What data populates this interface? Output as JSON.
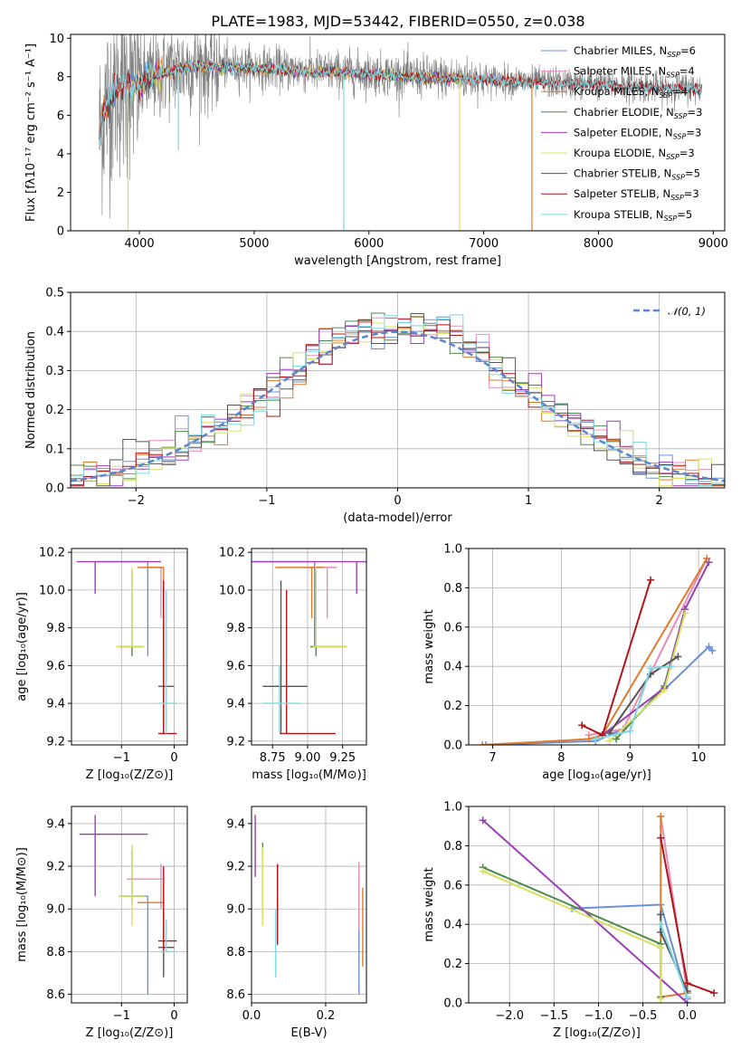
{
  "figure_title": "PLATE=1983, MJD=53442, FIBERID=0550, z=0.038",
  "colors": [
    "#6b8fd6",
    "#e58cb8",
    "#e07b2c",
    "#4c8a4c",
    "#9a3fb5",
    "#d8e060",
    "#555555",
    "#b0151b",
    "#7ed8e4"
  ],
  "chart_data": [
    {
      "id": "spectrum",
      "type": "line",
      "xlabel": "wavelength [Angstrom, rest frame]",
      "ylabel": "Flux [fλ10⁻¹⁷ erg cm⁻² s⁻¹ A⁻¹]",
      "xlim": [
        3400,
        9100
      ],
      "ylim": [
        0,
        10.2
      ],
      "xticks": [
        "4000",
        "5000",
        "6000",
        "7000",
        "8000",
        "9000"
      ],
      "yticks": [
        "0",
        "2",
        "4",
        "6",
        "8",
        "10"
      ],
      "legend_loc": "right",
      "legend": [
        "Chabrier MILES, N_SSP=6",
        "Salpeter MILES, N_SSP=4",
        "Kroupa MILES, N_SSP=4",
        "Chabrier ELODIE, N_SSP=3",
        "Salpeter ELODIE, N_SSP=3",
        "Kroupa ELODIE, N_SSP=3",
        "Chabrier STELIB, N_SSP=5",
        "Salpeter STELIB, N_SSP=3",
        "Kroupa STELIB, N_SSP=5"
      ],
      "data_range": [
        3650,
        8900
      ],
      "continuum": [
        [
          3650,
          5.0
        ],
        [
          3700,
          6.5
        ],
        [
          3800,
          7.5
        ],
        [
          3900,
          7.6
        ],
        [
          4000,
          7.6
        ],
        [
          4100,
          8.0
        ],
        [
          4300,
          8.4
        ],
        [
          4500,
          8.6
        ],
        [
          5000,
          8.5
        ],
        [
          5500,
          8.3
        ],
        [
          6000,
          8.2
        ],
        [
          6500,
          8.0
        ],
        [
          7000,
          7.9
        ],
        [
          7500,
          7.7
        ],
        [
          8000,
          7.6
        ],
        [
          8500,
          7.45
        ],
        [
          8900,
          7.4
        ]
      ],
      "model_ranges": [
        [
          3650,
          7410
        ],
        [
          3650,
          7410
        ],
        [
          3650,
          7410
        ],
        [
          4000,
          6800
        ],
        [
          4000,
          6800
        ],
        [
          3900,
          6800
        ],
        [
          3650,
          8900
        ],
        [
          3650,
          8900
        ],
        [
          3650,
          8900
        ]
      ],
      "dips": [
        {
          "x": 3900,
          "y": 0,
          "color_index": 5
        },
        {
          "x": 4340,
          "y": 4.2,
          "color_index": 8
        },
        {
          "x": 5780,
          "y": 0,
          "color_index": 8
        },
        {
          "x": 6790,
          "y": 0,
          "color_index": 5
        },
        {
          "x": 7420,
          "y": 0,
          "color_index": 2
        }
      ]
    },
    {
      "id": "residuals",
      "type": "line",
      "xlabel": "(data-model)/error",
      "ylabel": "Normed distribution",
      "xlim": [
        -2.5,
        2.5
      ],
      "ylim": [
        0,
        0.5
      ],
      "xticks": [
        "−2",
        "−1",
        "0",
        "1",
        "2"
      ],
      "yticks": [
        "0.0",
        "0.1",
        "0.2",
        "0.3",
        "0.4",
        "0.5"
      ],
      "grid": true,
      "legend": [
        "𝒩(0, 1)"
      ],
      "legend_loc": "top-right",
      "bin_width": 0.1
    },
    {
      "id": "age-vs-Z",
      "type": "scatter",
      "xlabel": "Z [log₁₀(Z/Z⊙)]",
      "ylabel": "age  [log₁₀(age/yr)]",
      "xlim": [
        -1.95,
        0.25
      ],
      "ylim": [
        9.18,
        10.22
      ],
      "xticks": [
        [
          "−1",
          -1
        ],
        [
          "0",
          0
        ]
      ],
      "yticks": [
        [
          "9.2",
          9.2
        ],
        [
          "9.4",
          9.4
        ],
        [
          "9.6",
          9.6
        ],
        [
          "9.8",
          9.8
        ],
        [
          "10.0",
          10.0
        ],
        [
          "10.2",
          10.2
        ]
      ],
      "grid": true,
      "points": [
        {
          "x": -0.5,
          "y": 10.15,
          "xe": [
            -1.5,
            -0.5
          ],
          "ye": [
            9.65,
            10.15
          ],
          "c": 0
        },
        {
          "x": -0.25,
          "y": 10.12,
          "xe": [
            -0.55,
            -0.2
          ],
          "ye": [
            9.85,
            10.12
          ],
          "c": 1
        },
        {
          "x": -0.2,
          "y": 10.12,
          "xe": [
            -0.7,
            -0.2
          ],
          "ye": [
            9.85,
            10.12
          ],
          "c": 2
        },
        {
          "x": -0.8,
          "y": 9.7,
          "xe": [
            -1.05,
            -0.6
          ],
          "ye": [
            9.65,
            10.1
          ],
          "c": 3
        },
        {
          "x": -1.5,
          "y": 10.15,
          "xe": [
            -1.85,
            -0.25
          ],
          "ye": [
            9.98,
            10.15
          ],
          "c": 4
        },
        {
          "x": -0.8,
          "y": 9.7,
          "xe": [
            -1.1,
            -0.55
          ],
          "ye": [
            9.7,
            10.12
          ],
          "c": 5
        },
        {
          "x": -0.2,
          "y": 9.49,
          "xe": [
            -0.3,
            0.0
          ],
          "ye": [
            9.24,
            10.02
          ],
          "c": 6
        },
        {
          "x": -0.2,
          "y": 9.24,
          "xe": [
            -0.3,
            0.05
          ],
          "ye": [
            9.24,
            10.05
          ],
          "c": 7
        },
        {
          "x": -0.15,
          "y": 9.4,
          "xe": [
            -0.3,
            0.05
          ],
          "ye": [
            9.24,
            10.0
          ],
          "c": 8
        }
      ]
    },
    {
      "id": "age-vs-mass",
      "type": "scatter",
      "xlabel": "mass [log₁₀(M/M⊙)]",
      "ylabel": "",
      "xlim": [
        8.6,
        9.42
      ],
      "ylim": [
        9.18,
        10.22
      ],
      "xticks": [
        [
          "8.75",
          8.75
        ],
        [
          "9.00",
          9.0
        ],
        [
          "9.25",
          9.25
        ]
      ],
      "yticks": [
        [
          "9.2",
          9.2
        ],
        [
          "9.4",
          9.4
        ],
        [
          "9.6",
          9.6
        ],
        [
          "9.8",
          9.8
        ],
        [
          "10.0",
          10.0
        ],
        [
          "10.2",
          10.2
        ]
      ],
      "grid": true,
      "points": [
        {
          "x": 9.05,
          "y": 10.15,
          "xe": [
            8.6,
            9.06
          ],
          "ye": [
            9.7,
            10.15
          ],
          "c": 0
        },
        {
          "x": 9.14,
          "y": 10.12,
          "xe": [
            9.0,
            9.21
          ],
          "ye": [
            9.85,
            10.12
          ],
          "c": 1
        },
        {
          "x": 9.03,
          "y": 10.12,
          "xe": [
            8.77,
            9.12
          ],
          "ye": [
            9.85,
            10.12
          ],
          "c": 2
        },
        {
          "x": 9.06,
          "y": 9.7,
          "xe": [
            9.02,
            9.28
          ],
          "ye": [
            9.65,
            10.1
          ],
          "c": 3
        },
        {
          "x": 9.35,
          "y": 10.15,
          "xe": [
            8.6,
            9.42
          ],
          "ye": [
            9.98,
            10.15
          ],
          "c": 4
        },
        {
          "x": 9.06,
          "y": 9.7,
          "xe": [
            9.04,
            9.28
          ],
          "ye": [
            9.7,
            10.12
          ],
          "c": 5
        },
        {
          "x": 8.81,
          "y": 9.49,
          "xe": [
            8.68,
            9.0
          ],
          "ye": [
            9.24,
            10.05
          ],
          "c": 6
        },
        {
          "x": 8.85,
          "y": 9.24,
          "xe": [
            8.8,
            9.2
          ],
          "ye": [
            9.24,
            10.0
          ],
          "c": 7
        },
        {
          "x": 8.8,
          "y": 9.4,
          "xe": [
            8.68,
            8.95
          ],
          "ye": [
            9.24,
            9.6
          ],
          "c": 8
        }
      ]
    },
    {
      "id": "mass-weight-vs-age",
      "type": "line",
      "xlabel": "age  [log₁₀(age/yr)]",
      "ylabel": "mass weight",
      "xlim": [
        6.65,
        10.38
      ],
      "ylim": [
        0,
        1
      ],
      "xticks": [
        [
          "7",
          7
        ],
        [
          "8",
          8
        ],
        [
          "9",
          9
        ],
        [
          "10",
          10
        ]
      ],
      "yticks": [
        [
          "0.0",
          0
        ],
        [
          "0.2",
          0.2
        ],
        [
          "0.4",
          0.4
        ],
        [
          "0.6",
          0.6
        ],
        [
          "0.8",
          0.8
        ],
        [
          "1.0",
          1.0
        ]
      ],
      "grid": true,
      "series": [
        {
          "c": 0,
          "x": [
            6.9,
            8.5,
            8.9,
            10.15,
            10.2
          ],
          "y": [
            0.0,
            0.02,
            0.08,
            0.5,
            0.48
          ]
        },
        {
          "c": 1,
          "x": [
            8.4,
            8.9,
            10.12
          ],
          "y": [
            0.05,
            0.08,
            0.95
          ]
        },
        {
          "c": 2,
          "x": [
            6.85,
            8.4,
            8.6,
            10.12
          ],
          "y": [
            0.0,
            0.03,
            0.05,
            0.95
          ]
        },
        {
          "c": 3,
          "x": [
            8.8,
            9.5,
            9.8
          ],
          "y": [
            0.03,
            0.3,
            0.69
          ]
        },
        {
          "c": 4,
          "x": [
            8.6,
            9.5,
            9.8,
            10.15
          ],
          "y": [
            0.05,
            0.29,
            0.69,
            0.93
          ]
        },
        {
          "c": 5,
          "x": [
            8.7,
            9.5,
            9.8
          ],
          "y": [
            0.02,
            0.28,
            0.67
          ]
        },
        {
          "c": 6,
          "x": [
            8.7,
            9.3,
            9.7
          ],
          "y": [
            0.06,
            0.36,
            0.45
          ]
        },
        {
          "c": 7,
          "x": [
            8.3,
            8.6,
            9.3
          ],
          "y": [
            0.1,
            0.05,
            0.84
          ]
        },
        {
          "c": 8,
          "x": [
            8.5,
            9.0,
            9.3,
            9.6
          ],
          "y": [
            0.03,
            0.07,
            0.39,
            0.4
          ]
        }
      ]
    },
    {
      "id": "mass-vs-Z",
      "type": "scatter",
      "xlabel": "Z [log₁₀(Z/Z⊙)]",
      "ylabel": "mass [log₁₀(M/M⊙)]",
      "xlim": [
        -1.95,
        0.25
      ],
      "ylim": [
        8.56,
        9.48
      ],
      "xticks": [
        [
          "−1",
          -1
        ],
        [
          "0",
          0
        ]
      ],
      "yticks": [
        [
          "8.6",
          8.6
        ],
        [
          "8.8",
          8.8
        ],
        [
          "9.0",
          9.0
        ],
        [
          "9.2",
          9.2
        ],
        [
          "9.4",
          9.4
        ]
      ],
      "grid": true,
      "points": [
        {
          "x": -0.5,
          "y": 9.06,
          "xe": [
            -0.9,
            -0.5
          ],
          "ye": [
            8.6,
            9.06
          ],
          "c": 0
        },
        {
          "x": -0.25,
          "y": 9.14,
          "xe": [
            -0.9,
            -0.2
          ],
          "ye": [
            9.0,
            9.21
          ],
          "c": 1
        },
        {
          "x": -0.2,
          "y": 9.03,
          "xe": [
            -0.7,
            -0.2
          ],
          "ye": [
            8.77,
            9.12
          ],
          "c": 2
        },
        {
          "x": -0.8,
          "y": 9.06,
          "xe": [
            -1.05,
            -0.55
          ],
          "ye": [
            9.02,
            9.28
          ],
          "c": 3
        },
        {
          "x": -1.5,
          "y": 9.35,
          "xe": [
            -1.8,
            -0.5
          ],
          "ye": [
            9.06,
            9.44
          ],
          "c": 4
        },
        {
          "x": -0.8,
          "y": 9.06,
          "xe": [
            -1.05,
            -0.55
          ],
          "ye": [
            8.92,
            9.3
          ],
          "c": 5
        },
        {
          "x": -0.2,
          "y": 8.82,
          "xe": [
            -0.3,
            0.0
          ],
          "ye": [
            8.68,
            9.0
          ],
          "c": 6
        },
        {
          "x": -0.2,
          "y": 8.85,
          "xe": [
            -0.3,
            0.05
          ],
          "ye": [
            8.8,
            9.2
          ],
          "c": 7
        },
        {
          "x": -0.15,
          "y": 8.8,
          "xe": [
            -0.3,
            0.05
          ],
          "ye": [
            8.8,
            8.95
          ],
          "c": 8
        }
      ]
    },
    {
      "id": "mass-vs-EBV",
      "type": "scatter",
      "xlabel": "E(B-V)",
      "ylabel": "",
      "xlim": [
        0,
        0.31
      ],
      "ylim": [
        8.56,
        9.48
      ],
      "xticks": [
        [
          "0.0",
          0
        ],
        [
          "0.2",
          0.2
        ]
      ],
      "yticks": [
        [
          "8.6",
          8.6
        ],
        [
          "8.8",
          8.8
        ],
        [
          "9.0",
          9.0
        ],
        [
          "9.2",
          9.2
        ],
        [
          "9.4",
          9.4
        ]
      ],
      "grid": true,
      "points": [
        {
          "x": 0.29,
          "y": 9.0,
          "xe": [
            0.29,
            0.29
          ],
          "ye": [
            8.6,
            9.15
          ],
          "c": 0
        },
        {
          "x": 0.29,
          "y": 9.1,
          "xe": [
            0.29,
            0.29
          ],
          "ye": [
            8.9,
            9.22
          ],
          "c": 1
        },
        {
          "x": 0.3,
          "y": 8.95,
          "xe": [
            0.3,
            0.3
          ],
          "ye": [
            8.73,
            9.1
          ],
          "c": 2
        },
        {
          "x": 0.03,
          "y": 9.1,
          "xe": [
            0.03,
            0.03
          ],
          "ye": [
            8.97,
            9.31
          ],
          "c": 3
        },
        {
          "x": 0.01,
          "y": 9.35,
          "xe": [
            0.01,
            0.01
          ],
          "ye": [
            9.15,
            9.44
          ],
          "c": 4
        },
        {
          "x": 0.03,
          "y": 9.1,
          "xe": [
            0.03,
            0.03
          ],
          "ye": [
            8.92,
            9.29
          ],
          "c": 5
        },
        {
          "x": 0.07,
          "y": 9.0,
          "xe": [
            0.07,
            0.07
          ],
          "ye": [
            8.83,
            9.21
          ],
          "c": 6
        },
        {
          "x": 0.07,
          "y": 9.05,
          "xe": [
            0.07,
            0.07
          ],
          "ye": [
            8.84,
            9.21
          ],
          "c": 7
        },
        {
          "x": 0.065,
          "y": 8.85,
          "xe": [
            0.065,
            0.065
          ],
          "ye": [
            8.68,
            9.0
          ],
          "c": 8
        }
      ]
    },
    {
      "id": "mass-weight-vs-Z",
      "type": "line",
      "xlabel": "Z [log₁₀(Z/Z⊙)]",
      "ylabel": "mass weight",
      "xlim": [
        -2.46,
        0.42
      ],
      "ylim": [
        0,
        1
      ],
      "xticks": [
        [
          "−2.0",
          -2
        ],
        [
          "−1.5",
          -1.5
        ],
        [
          "−1.0",
          -1
        ],
        [
          "−0.5",
          -0.5
        ],
        [
          "0.0",
          0
        ]
      ],
      "yticks": [
        [
          "0.0",
          0
        ],
        [
          "0.2",
          0.2
        ],
        [
          "0.4",
          0.4
        ],
        [
          "0.6",
          0.6
        ],
        [
          "0.8",
          0.8
        ],
        [
          "1.0",
          1.0
        ]
      ],
      "grid": true,
      "series": [
        {
          "c": 0,
          "x": [
            -1.3,
            -0.3,
            0.0
          ],
          "y": [
            0.48,
            0.5,
            0.02
          ]
        },
        {
          "c": 1,
          "x": [
            -0.3,
            0.0
          ],
          "y": [
            0.95,
            0.05
          ]
        },
        {
          "c": 2,
          "x": [
            -0.3,
            -0.3,
            0.0
          ],
          "y": [
            0.95,
            0.03,
            0.05
          ]
        },
        {
          "c": 3,
          "x": [
            -2.3,
            -0.3,
            -0.3
          ],
          "y": [
            0.69,
            0.3,
            0.03
          ]
        },
        {
          "c": 4,
          "x": [
            -2.3,
            0.0
          ],
          "y": [
            0.93,
            0.0
          ]
        },
        {
          "c": 5,
          "x": [
            -2.3,
            -0.3,
            -0.3
          ],
          "y": [
            0.67,
            0.28,
            0.02
          ]
        },
        {
          "c": 6,
          "x": [
            -0.3,
            -0.3,
            0.0
          ],
          "y": [
            0.45,
            0.36,
            0.06
          ]
        },
        {
          "c": 7,
          "x": [
            -0.3,
            0.0,
            0.3
          ],
          "y": [
            0.84,
            0.1,
            0.05
          ]
        },
        {
          "c": 8,
          "x": [
            -0.3,
            0.0
          ],
          "y": [
            0.4,
            0.03
          ]
        }
      ]
    }
  ]
}
